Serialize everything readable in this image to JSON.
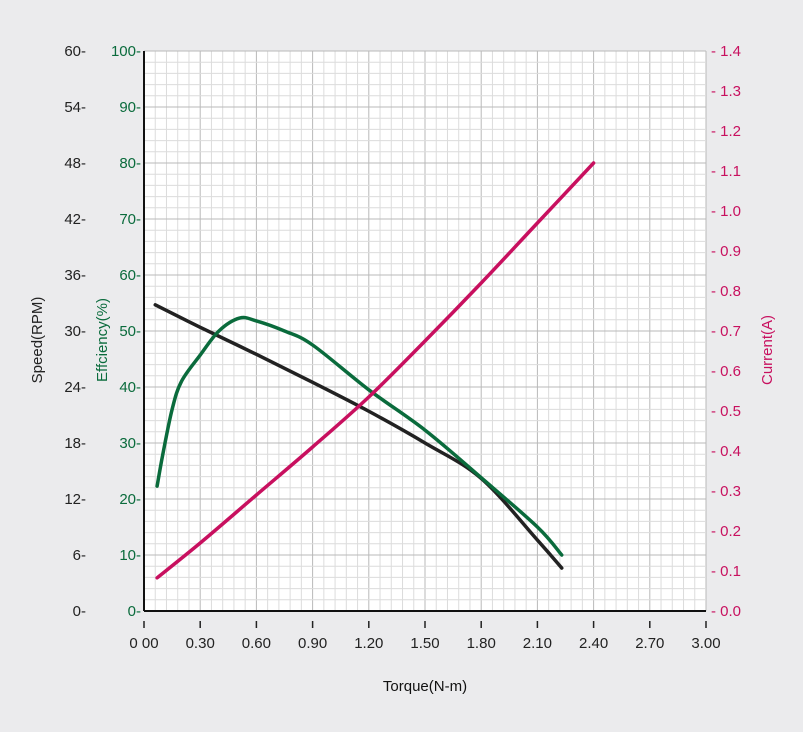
{
  "chart_data": {
    "type": "line",
    "xlabel": "Torque(N-m)",
    "xlim": [
      0,
      3.0
    ],
    "xticks": [
      "0 00",
      "0.30",
      "0.60",
      "0.90",
      "1.20",
      "1.50",
      "1.80",
      "2.10",
      "2.40",
      "2.70",
      "3.00"
    ],
    "grid": true,
    "axes": [
      {
        "id": "speed",
        "label": "Speed(RPM)",
        "range": [
          0,
          60
        ],
        "ticks": [
          "0",
          "6",
          "12",
          "18",
          "24",
          "30",
          "36",
          "42",
          "48",
          "54",
          "60"
        ],
        "color": "#222222",
        "side": "left-outer"
      },
      {
        "id": "eff",
        "label": "Efficiency(%)",
        "range": [
          0,
          100
        ],
        "ticks": [
          "0",
          "10",
          "20",
          "30",
          "40",
          "50",
          "60",
          "70",
          "80",
          "90",
          "100"
        ],
        "color": "#0a6b3c",
        "side": "left-inner"
      },
      {
        "id": "current",
        "label": "Current(A)",
        "range": [
          0,
          1.4
        ],
        "ticks": [
          "0.0",
          "0.1",
          "0.2",
          "0.3",
          "0.4",
          "0.5",
          "0.6",
          "0.7",
          "0.8",
          "0.9",
          "1.0",
          "1.1",
          "1.2",
          "1.3",
          "1.4"
        ],
        "color": "#c8105f",
        "side": "right"
      }
    ],
    "tick_labels_display": {
      "eff_label": "Effciency(%)"
    },
    "series": [
      {
        "name": "Speed",
        "axis": "speed",
        "color": "#222222",
        "x": [
          0.06,
          0.3,
          0.6,
          0.9,
          1.2,
          1.5,
          1.8,
          2.1,
          2.23
        ],
        "y": [
          32.8,
          30.4,
          27.5,
          24.5,
          21.4,
          18.0,
          14.2,
          7.6,
          4.6
        ]
      },
      {
        "name": "Efficiency",
        "axis": "eff",
        "color": "#0a6b3c",
        "x": [
          0.07,
          0.1,
          0.15,
          0.2,
          0.3,
          0.4,
          0.51,
          0.6,
          0.75,
          0.9,
          1.2,
          1.5,
          1.8,
          2.1,
          2.23
        ],
        "y": [
          22.3,
          27.9,
          36,
          41,
          45.7,
          50,
          52.3,
          51.8,
          50,
          47.5,
          39.5,
          32.3,
          23.8,
          15,
          10
        ]
      },
      {
        "name": "Current",
        "axis": "current",
        "color": "#c8105f",
        "x": [
          0.07,
          0.3,
          0.6,
          0.9,
          1.2,
          1.5,
          1.8,
          2.1,
          2.4
        ],
        "y": [
          0.083,
          0.17,
          0.29,
          0.41,
          0.535,
          0.675,
          0.82,
          0.97,
          1.12
        ]
      }
    ]
  }
}
